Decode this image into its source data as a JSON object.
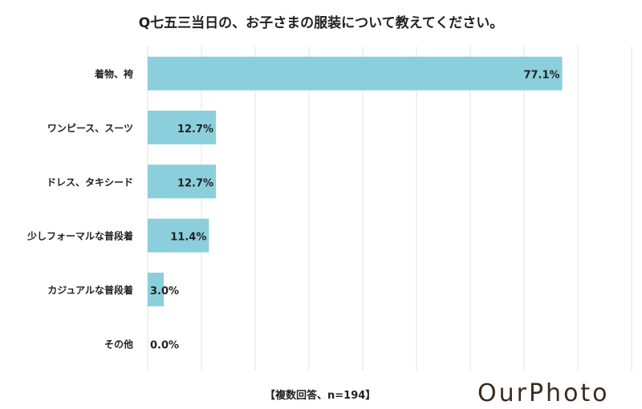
{
  "chart_data": {
    "type": "bar",
    "orientation": "horizontal",
    "title": "Q七五三当日の、お子さまの服装について教えてください。",
    "categories": [
      "着物、袴",
      "ワンピース、スーツ",
      "ドレス、タキシード",
      "少しフォーマルな普段着",
      "カジュアルな普段着",
      "その他"
    ],
    "values": [
      77.1,
      12.7,
      12.7,
      11.4,
      3.0,
      0.0
    ],
    "data_labels": [
      "77.1%",
      "12.7%",
      "12.7%",
      "11.4%",
      "3.0%",
      "0.0%"
    ],
    "xlim": [
      0,
      90
    ],
    "grid": true,
    "bar_color": "#8ccfdc",
    "note": "【複数回答、n=194】"
  },
  "logo": "OurPhoto"
}
